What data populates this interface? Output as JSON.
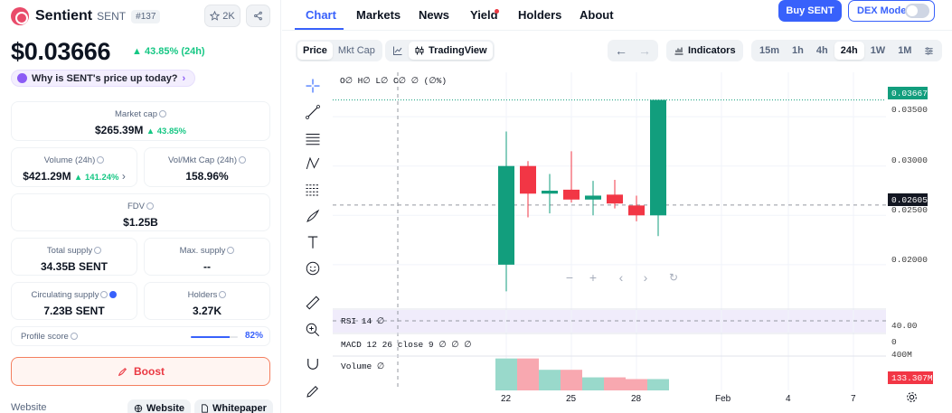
{
  "coin": {
    "name": "Sentient",
    "symbol": "SENT",
    "rank": "#137",
    "watchlist_count": "2K",
    "price": "$0.03666",
    "price_change": "43.85% (24h)",
    "why_chip": "Why is SENT's price up today?"
  },
  "stats": {
    "market_cap": {
      "label": "Market cap",
      "value": "$265.39M",
      "change": "43.85%"
    },
    "volume": {
      "label": "Volume (24h)",
      "value": "$421.29M",
      "change": "141.24%"
    },
    "vol_mkt": {
      "label": "Vol/Mkt Cap (24h)",
      "value": "158.96%"
    },
    "fdv": {
      "label": "FDV",
      "value": "$1.25B"
    },
    "total_supply": {
      "label": "Total supply",
      "value": "34.35B SENT"
    },
    "max_supply": {
      "label": "Max. supply",
      "value": "--"
    },
    "circ_supply": {
      "label": "Circulating supply",
      "value": "7.23B SENT"
    },
    "holders": {
      "label": "Holders",
      "value": "3.27K"
    },
    "profile_score": {
      "label": "Profile score",
      "value": "82%",
      "fraction": 0.82
    }
  },
  "boost_label": "Boost",
  "links": {
    "label": "Website",
    "website": "Website",
    "whitepaper": "Whitepaper"
  },
  "tabs": [
    "Chart",
    "Markets",
    "News",
    "Yield",
    "Holders",
    "About"
  ],
  "buttons": {
    "buy": "Buy SENT",
    "dex_mode": "DEX Mode"
  },
  "toolbar": {
    "price": "Price",
    "mkt_cap": "Mkt Cap",
    "tradingview": "TradingView",
    "indicators": "Indicators",
    "timeframes": [
      "15m",
      "1h",
      "4h",
      "24h",
      "1W",
      "1M"
    ],
    "active_timeframe": "24h"
  },
  "chart_labels": {
    "ohlc": "O∅ H∅ L∅ C∅ ∅ (∅%)",
    "rsi": "RSI 14 ∅",
    "macd": "MACD 12 26 close 9 ∅ ∅ ∅",
    "volume": "Volume ∅",
    "last_price_tag": "0.03667",
    "crosshair_tag": "0.02605",
    "rsi_level": "40.00",
    "macd_zero": "0",
    "volume_axis": "400M",
    "volume_tag": "133.307M"
  },
  "chart_data": {
    "type": "candlestick",
    "x_ticks": [
      "22",
      "25",
      "28",
      "Feb",
      "4",
      "7"
    ],
    "y_ticks": [
      "0.03500",
      "0.03000",
      "0.02500",
      "0.02000"
    ],
    "ylim": [
      0.0155,
      0.0395
    ],
    "candles": [
      {
        "o": 0.02,
        "h": 0.0335,
        "l": 0.0173,
        "c": 0.03
      },
      {
        "o": 0.03,
        "h": 0.0305,
        "l": 0.0248,
        "c": 0.0272
      },
      {
        "o": 0.0272,
        "h": 0.0292,
        "l": 0.0252,
        "c": 0.0275
      },
      {
        "o": 0.0276,
        "h": 0.0315,
        "l": 0.0263,
        "c": 0.0266
      },
      {
        "o": 0.0266,
        "h": 0.0285,
        "l": 0.025,
        "c": 0.027
      },
      {
        "o": 0.0271,
        "h": 0.0286,
        "l": 0.0257,
        "c": 0.0262
      },
      {
        "o": 0.026,
        "h": 0.027,
        "l": 0.0244,
        "c": 0.025
      },
      {
        "o": 0.025,
        "h": 0.0367,
        "l": 0.0229,
        "c": 0.0367
      }
    ],
    "volume": [
      0.93,
      0.93,
      0.6,
      0.6,
      0.38,
      0.38,
      0.33,
      0.33
    ]
  },
  "colors": {
    "up": "#129e7d",
    "down": "#f23645",
    "vol_up": "#99d9cb",
    "vol_down": "#f8a8b0",
    "accent": "#3861fb"
  }
}
